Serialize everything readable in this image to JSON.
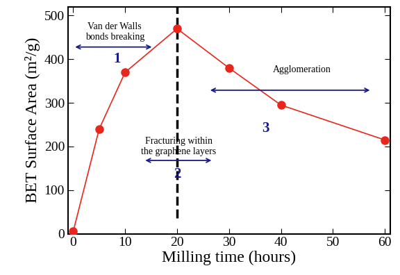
{
  "chart_data": {
    "type": "line",
    "x_label": "Milling time (hours)",
    "y_label": "BET Surface Area (m²/g)",
    "x": [
      0,
      5,
      10,
      20,
      30,
      40,
      60
    ],
    "values": [
      5,
      240,
      370,
      470,
      380,
      295,
      215
    ],
    "color": "#e8261c",
    "marker": "circle",
    "line_style": "solid",
    "xlim": [
      -1,
      61
    ],
    "xticks": [
      0,
      10,
      20,
      30,
      40,
      50,
      60
    ],
    "ylim": [
      0,
      520
    ],
    "yticks": [
      0,
      100,
      200,
      300,
      400,
      500
    ],
    "grid": false,
    "reference_line": 20,
    "annotations": [
      {
        "text": "Van der Walls bonds breaking",
        "stage": "1"
      },
      {
        "text": "Fracturing within the graphene layers",
        "stage": "2"
      },
      {
        "text": "Agglomeration",
        "stage": "3"
      }
    ]
  }
}
